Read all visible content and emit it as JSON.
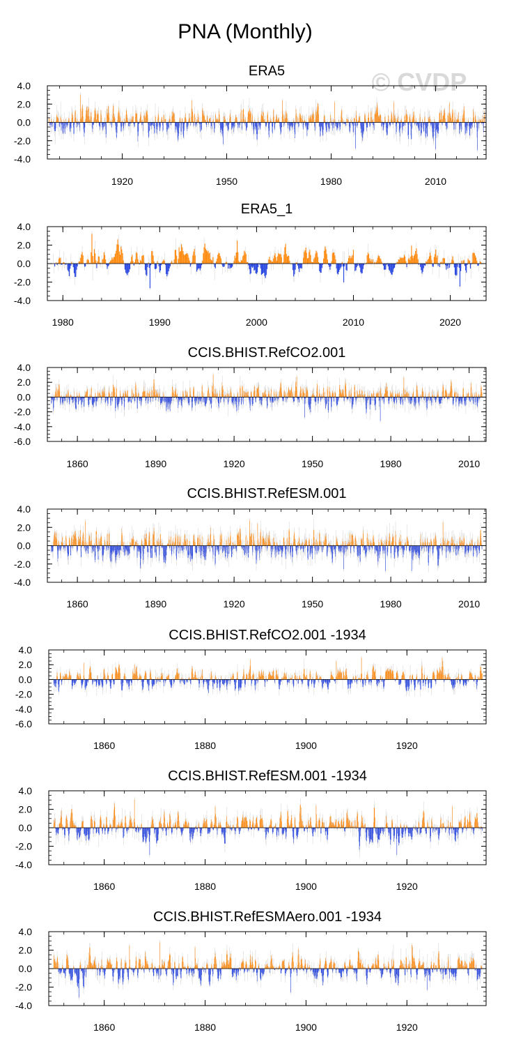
{
  "figure": {
    "title": "PNA (Monthly)",
    "watermark": "© CVDP",
    "colors": {
      "positive": "#ff8a10",
      "negative": "#2846e0",
      "unsmoothed": "#d8d8d8",
      "frame": "#000000"
    }
  },
  "chart_data": [
    {
      "type": "bar",
      "title": "ERA5",
      "x_range": [
        1898.5,
        2024.5
      ],
      "x_ticks": [
        1920,
        1950,
        1980,
        2010
      ],
      "ylim": [
        -4.0,
        4.0
      ],
      "y_ticks": [
        "4.0",
        "2.0",
        "0.0",
        "-2.0",
        "-4.0"
      ],
      "y_tick_values": [
        4.0,
        2.0,
        0.0,
        -2.0,
        -4.0
      ],
      "series": {
        "name": "monthly PNA index",
        "frequency": "monthly",
        "start": 1899.0,
        "end": 2024.2,
        "peaks": [
          [
            1908,
            3.3
          ],
          [
            1940,
            2.6
          ],
          [
            1949,
            -2.6
          ],
          [
            1966,
            2.6
          ],
          [
            1981,
            2.4
          ],
          [
            1987,
            -3.1
          ],
          [
            1998,
            2.4
          ],
          [
            2010,
            -3.2
          ],
          [
            2014,
            2.3
          ],
          [
            2022,
            -3.3
          ]
        ]
      }
    },
    {
      "type": "bar",
      "title": "ERA5_1",
      "x_range": [
        1978.4,
        2023.7
      ],
      "x_ticks": [
        1980,
        1990,
        2000,
        2010,
        2020
      ],
      "ylim": [
        -4.0,
        4.0
      ],
      "y_ticks": [
        "4.0",
        "2.0",
        "0.0",
        "-2.0",
        "-4.0"
      ],
      "y_tick_values": [
        4.0,
        2.0,
        0.0,
        -2.0,
        -4.0
      ],
      "series": {
        "name": "monthly PNA index",
        "frequency": "monthly",
        "start": 1979.0,
        "end": 2023.2,
        "peaks": [
          [
            1983,
            3.5
          ],
          [
            1986,
            2.0
          ],
          [
            1989,
            -2.9
          ],
          [
            1992,
            1.9
          ],
          [
            1998,
            2.7
          ],
          [
            2003,
            2.3
          ],
          [
            2009,
            -2.2
          ],
          [
            2010,
            1.6
          ],
          [
            2016,
            2.1
          ],
          [
            2021,
            -2.7
          ]
        ]
      }
    },
    {
      "type": "bar",
      "title": "CCIS.BHIST.RefCO2.001",
      "x_range": [
        1848.5,
        2016.5
      ],
      "x_ticks": [
        1860,
        1890,
        1920,
        1950,
        1980,
        2010
      ],
      "ylim": [
        -6.0,
        4.0
      ],
      "y_ticks": [
        "4.0",
        "2.0",
        "0.0",
        "-2.0",
        "-4.0",
        "-6.0"
      ],
      "y_tick_values": [
        4.0,
        2.0,
        0.0,
        -2.0,
        -4.0,
        -6.0
      ],
      "series": {
        "name": "monthly PNA index",
        "frequency": "monthly",
        "start": 1850.0,
        "end": 2014.9,
        "peaks": [
          [
            1912,
            3.3
          ],
          [
            1944,
            3.0
          ],
          [
            1947,
            -3.0
          ],
          [
            1976,
            -3.5
          ],
          [
            1985,
            2.9
          ]
        ]
      }
    },
    {
      "type": "bar",
      "title": "CCIS.BHIST.RefESM.001",
      "x_range": [
        1848.5,
        2016.5
      ],
      "x_ticks": [
        1860,
        1890,
        1920,
        1950,
        1980,
        2010
      ],
      "ylim": [
        -4.0,
        4.0
      ],
      "y_ticks": [
        "4.0",
        "2.0",
        "0.0",
        "-2.0",
        "-4.0"
      ],
      "y_tick_values": [
        4.0,
        2.0,
        0.0,
        -2.0,
        -4.0
      ],
      "series": {
        "name": "monthly PNA index",
        "frequency": "monthly",
        "start": 1850.0,
        "end": 2014.9,
        "peaks": [
          [
            1863,
            2.9
          ],
          [
            1926,
            3.0
          ],
          [
            1929,
            2.6
          ],
          [
            1962,
            -2.8
          ],
          [
            1978,
            -3.0
          ],
          [
            1988,
            -3.0
          ],
          [
            2000,
            2.8
          ]
        ]
      }
    },
    {
      "type": "bar",
      "title": "CCIS.BHIST.RefCO2.001 -1934",
      "x_range": [
        1849.0,
        1935.7
      ],
      "x_ticks": [
        1860,
        1880,
        1900,
        1920
      ],
      "ylim": [
        -6.0,
        4.0
      ],
      "y_ticks": [
        "4.0",
        "2.0",
        "0.0",
        "-2.0",
        "-4.0",
        "-6.0"
      ],
      "y_tick_values": [
        4.0,
        2.0,
        0.0,
        -2.0,
        -4.0,
        -6.0
      ],
      "series": {
        "name": "monthly PNA index",
        "frequency": "monthly",
        "start": 1850.0,
        "end": 1934.9,
        "peaks": [
          [
            1856,
            2.4
          ],
          [
            1866,
            2.2
          ],
          [
            1889,
            2.9
          ],
          [
            1906,
            2.7
          ],
          [
            1911,
            3.2
          ],
          [
            1927,
            3.2
          ]
        ]
      }
    },
    {
      "type": "bar",
      "title": "CCIS.BHIST.RefESM.001 -1934",
      "x_range": [
        1849.0,
        1935.7
      ],
      "x_ticks": [
        1860,
        1880,
        1900,
        1920
      ],
      "ylim": [
        -4.0,
        4.0
      ],
      "y_ticks": [
        "4.0",
        "2.0",
        "0.0",
        "-2.0",
        "-4.0"
      ],
      "y_tick_values": [
        4.0,
        2.0,
        0.0,
        -2.0,
        -4.0
      ],
      "series": {
        "name": "monthly PNA index",
        "frequency": "monthly",
        "start": 1850.0,
        "end": 1934.9,
        "peaks": [
          [
            1862,
            2.9
          ],
          [
            1866,
            3.3
          ],
          [
            1869,
            -3.2
          ],
          [
            1882,
            2.5
          ],
          [
            1902,
            2.6
          ],
          [
            1918,
            -3.2
          ],
          [
            1929,
            2.5
          ]
        ]
      }
    },
    {
      "type": "bar",
      "title": "CCIS.BHIST.RefESMAero.001 -1934",
      "x_range": [
        1849.0,
        1935.7
      ],
      "x_ticks": [
        1860,
        1880,
        1900,
        1920
      ],
      "ylim": [
        -4.0,
        4.0
      ],
      "y_ticks": [
        "4.0",
        "2.0",
        "0.0",
        "-2.0",
        "-4.0"
      ],
      "y_tick_values": [
        4.0,
        2.0,
        0.0,
        -2.0,
        -4.0
      ],
      "series": {
        "name": "monthly PNA index",
        "frequency": "monthly",
        "start": 1850.0,
        "end": 1934.9,
        "peaks": [
          [
            1855,
            -3.4
          ],
          [
            1865,
            2.7
          ],
          [
            1871,
            3.1
          ],
          [
            1878,
            2.5
          ],
          [
            1897,
            -2.8
          ],
          [
            1921,
            2.8
          ],
          [
            1924,
            -2.5
          ]
        ]
      }
    }
  ]
}
